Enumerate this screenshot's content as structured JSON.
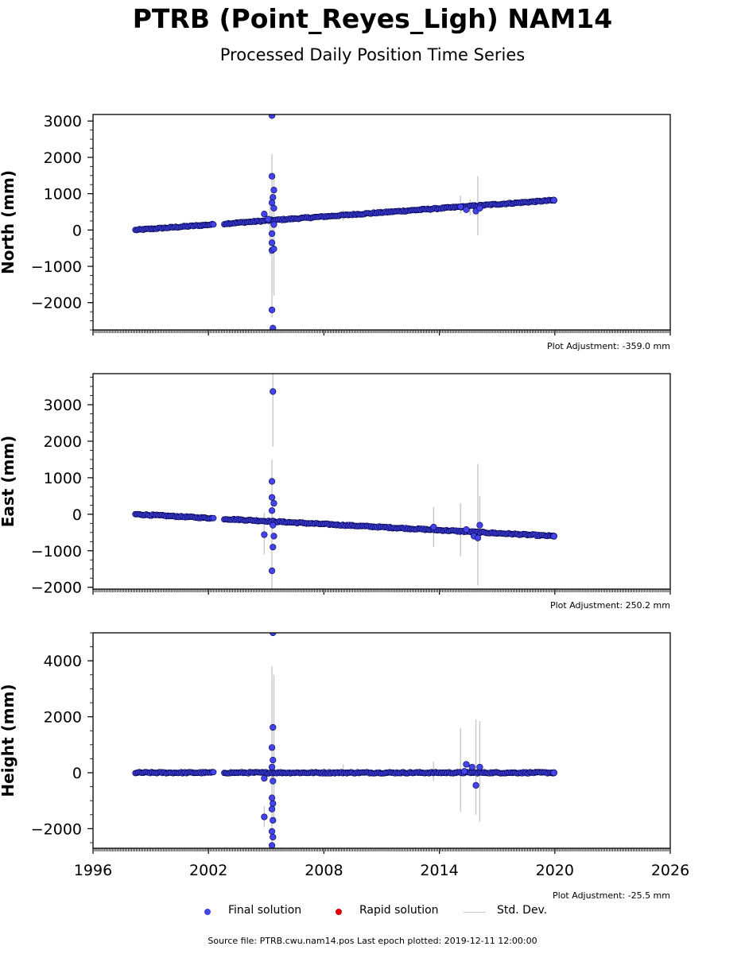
{
  "title": "PTRB (Point_Reyes_Ligh) NAM14",
  "subtitle": "Processed Daily Position Time Series",
  "chart_data": {
    "type": "scatter",
    "x_label": "",
    "x_range": [
      1996,
      2026
    ],
    "x_ticks": [
      1996,
      2002,
      2008,
      2014,
      2020,
      2026
    ],
    "panels": [
      {
        "name": "north",
        "ylabel": "North (mm)",
        "ylim": [
          -2750,
          3180
        ],
        "yticks": [
          -2000,
          -1000,
          0,
          1000,
          2000,
          3000
        ],
        "adjustment": "Plot Adjustment: -359.0 mm",
        "trend": {
          "start": [
            1998.2,
            0
          ],
          "end": [
            2019.95,
            820
          ]
        },
        "outliers": [
          [
            2004.9,
            440
          ],
          [
            2005.1,
            300
          ],
          [
            2005.3,
            3150
          ],
          [
            2005.3,
            1480
          ],
          [
            2005.35,
            900
          ],
          [
            2005.4,
            1100
          ],
          [
            2005.3,
            750
          ],
          [
            2005.4,
            600
          ],
          [
            2005.3,
            -560
          ],
          [
            2005.4,
            -520
          ],
          [
            2005.3,
            -350
          ],
          [
            2005.3,
            -2200
          ],
          [
            2005.35,
            -2700
          ],
          [
            2005.3,
            -100
          ],
          [
            2005.4,
            150
          ],
          [
            2015.4,
            560
          ],
          [
            2015.9,
            520
          ],
          [
            2016.1,
            600
          ],
          [
            2015.1,
            640
          ]
        ],
        "error_bars": [
          [
            2005.3,
            -2400,
            2100
          ],
          [
            2005.4,
            -1800,
            1400
          ],
          [
            2005.2,
            -700,
            900
          ],
          [
            2015.1,
            450,
            950
          ],
          [
            2015.6,
            400,
            850
          ],
          [
            2016.0,
            -150,
            1480
          ],
          [
            2009.0,
            250,
            550
          ]
        ]
      },
      {
        "name": "east",
        "ylabel": "East (mm)",
        "ylim": [
          -2050,
          3850
        ],
        "yticks": [
          -2000,
          -1000,
          0,
          1000,
          2000,
          3000
        ],
        "adjustment": "Plot Adjustment: 250.2 mm",
        "trend": {
          "start": [
            1998.2,
            0
          ],
          "end": [
            2019.95,
            -600
          ]
        },
        "outliers": [
          [
            2005.35,
            3360
          ],
          [
            2005.3,
            900
          ],
          [
            2005.3,
            460
          ],
          [
            2005.4,
            300
          ],
          [
            2005.3,
            100
          ],
          [
            2005.35,
            -300
          ],
          [
            2005.4,
            -600
          ],
          [
            2005.35,
            -900
          ],
          [
            2005.3,
            -1550
          ],
          [
            2004.9,
            -560
          ],
          [
            2015.4,
            -420
          ],
          [
            2015.8,
            -600
          ],
          [
            2016.0,
            -650
          ],
          [
            2016.1,
            -300
          ],
          [
            2013.7,
            -350
          ]
        ],
        "error_bars": [
          [
            2005.35,
            1850,
            3850
          ],
          [
            2005.3,
            -2050,
            1500
          ],
          [
            2004.9,
            -1100,
            50
          ],
          [
            2013.7,
            -900,
            200
          ],
          [
            2015.1,
            -1150,
            300
          ],
          [
            2016.0,
            -1950,
            1380
          ],
          [
            2016.1,
            -700,
            500
          ]
        ]
      },
      {
        "name": "height",
        "ylabel": "Height (mm)",
        "ylim": [
          -2700,
          5000
        ],
        "yticks": [
          -2000,
          0,
          2000,
          4000
        ],
        "adjustment": "Plot Adjustment: -25.5 mm",
        "trend": {
          "start": [
            1998.2,
            0
          ],
          "end": [
            2019.95,
            0
          ]
        },
        "outliers": [
          [
            2005.35,
            5000
          ],
          [
            2005.35,
            1620
          ],
          [
            2005.3,
            900
          ],
          [
            2005.35,
            450
          ],
          [
            2005.3,
            200
          ],
          [
            2005.35,
            -300
          ],
          [
            2005.3,
            -900
          ],
          [
            2005.35,
            -1100
          ],
          [
            2005.3,
            -1300
          ],
          [
            2005.35,
            -1700
          ],
          [
            2005.3,
            -2100
          ],
          [
            2005.35,
            -2300
          ],
          [
            2005.3,
            -2600
          ],
          [
            2004.9,
            -1580
          ],
          [
            2004.9,
            -200
          ],
          [
            2015.4,
            300
          ],
          [
            2015.7,
            200
          ],
          [
            2015.9,
            -450
          ],
          [
            2016.1,
            200
          ],
          [
            2015.3,
            50
          ]
        ],
        "error_bars": [
          [
            2005.3,
            -2700,
            3800
          ],
          [
            2005.4,
            -1800,
            3500
          ],
          [
            2004.9,
            -1950,
            -1200
          ],
          [
            2013.7,
            -300,
            400
          ],
          [
            2015.1,
            -1400,
            1600
          ],
          [
            2015.9,
            -1500,
            1900
          ],
          [
            2016.1,
            -1750,
            1850
          ],
          [
            2009.0,
            -100,
            300
          ]
        ]
      }
    ],
    "colors": {
      "final": "#4444ee",
      "rapid": "#dd0000",
      "stddev": "#c8c8c8",
      "edge": "#000040"
    }
  },
  "legend": {
    "final_label": "Final solution",
    "rapid_label": "Rapid solution",
    "stddev_label": "Std. Dev."
  },
  "source": "Source file: PTRB.cwu.nam14.pos  Last epoch plotted: 2019-12-11 12:00:00"
}
